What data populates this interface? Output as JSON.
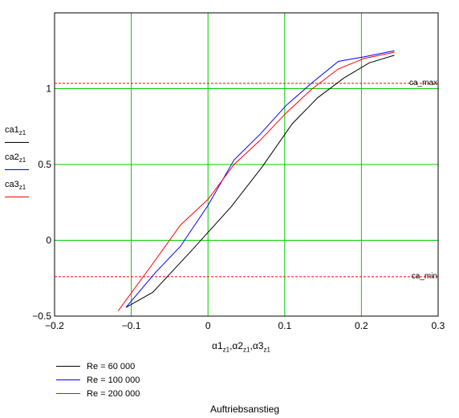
{
  "chart_data": {
    "type": "line",
    "title": "Auftriebsanstieg",
    "xlabel": "α1z1, α2z1, α3z1",
    "ylabel_parts": [
      {
        "main": "ca1",
        "sub": "z1"
      },
      {
        "main": "ca2",
        "sub": "z1"
      },
      {
        "main": "ca3",
        "sub": "z1"
      }
    ],
    "xlabel_parts": [
      {
        "main": "α1",
        "sub": "z1"
      },
      {
        "main": "α2",
        "sub": "z1"
      },
      {
        "main": "α3",
        "sub": "z1"
      }
    ],
    "xlim": [
      -0.2,
      0.3
    ],
    "ylim": [
      -0.5,
      1.5
    ],
    "xticks": [
      -0.2,
      -0.1,
      0,
      0.1,
      0.2,
      0.3
    ],
    "yticks": [
      -0.5,
      0,
      0.5,
      1
    ],
    "xtick_labels": [
      "−0.2",
      "−0.1",
      "0",
      "0.1",
      "0.2",
      "0.3"
    ],
    "ytick_labels": [
      "−0.5",
      "0",
      "0.5",
      "1"
    ],
    "grid": true,
    "grid_color": "#00cc00",
    "series": [
      {
        "name": "Re = 60 000",
        "color": "#000000",
        "x": [
          -0.107,
          -0.072,
          -0.02,
          0.03,
          0.07,
          0.11,
          0.143,
          0.177,
          0.21,
          0.243
        ],
        "y": [
          -0.443,
          -0.343,
          -0.06,
          0.22,
          0.48,
          0.77,
          0.94,
          1.07,
          1.17,
          1.22
        ]
      },
      {
        "name": "Re = 100 000",
        "color": "#0000ff",
        "x": [
          -0.107,
          -0.068,
          -0.036,
          0,
          0.034,
          0.068,
          0.102,
          0.136,
          0.17,
          0.204,
          0.243
        ],
        "y": [
          -0.443,
          -0.21,
          -0.04,
          0.23,
          0.53,
          0.7,
          0.89,
          1.04,
          1.18,
          1.21,
          1.25
        ]
      },
      {
        "name": "Re = 200 000",
        "color": "#ff0000",
        "x": [
          -0.117,
          -0.07,
          -0.036,
          0,
          0.034,
          0.068,
          0.102,
          0.136,
          0.17,
          0.204,
          0.243
        ],
        "y": [
          -0.465,
          -0.14,
          0.1,
          0.27,
          0.5,
          0.66,
          0.84,
          1.0,
          1.13,
          1.2,
          1.24
        ]
      }
    ],
    "reference_lines": [
      {
        "label": "ca_max",
        "y": 1.035,
        "color": "#ff0000",
        "style": "dashed"
      },
      {
        "label": "ca_min",
        "y": -0.24,
        "color": "#ff0000",
        "style": "dashed"
      }
    ]
  }
}
